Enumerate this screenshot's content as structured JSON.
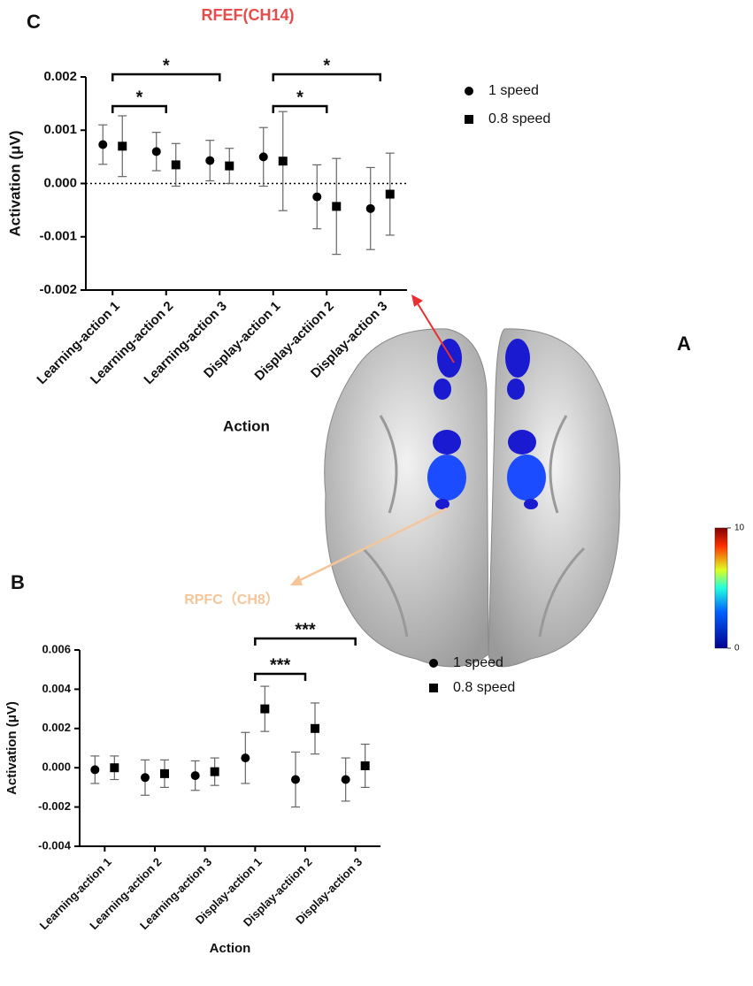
{
  "figure": {
    "panel_a": "A",
    "panel_b": "B",
    "panel_c": "C",
    "region_b": "RPFC（CH8）",
    "colorbar": {
      "ticks": [
        0,
        10
      ]
    }
  },
  "chart_data": [
    {
      "type": "errorbar",
      "title": "RFEF(CH14)",
      "x_label": "Action",
      "y_label": "Activation (μV)",
      "categories": [
        "Learning-action 1",
        "Learning-action 2",
        "Learning-action 3",
        "Display-action 1",
        "Display-actiion 2",
        "Display-action 3"
      ],
      "series": [
        {
          "name": "1 speed",
          "marker": "circle",
          "color": "#000000",
          "values": [
            0.00073,
            0.0006,
            0.00043,
            0.0005,
            -0.00025,
            -0.00047
          ],
          "errors": [
            0.00037,
            0.00036,
            0.00038,
            0.00055,
            0.0006,
            0.00077
          ]
        },
        {
          "name": "0.8 speed",
          "marker": "square",
          "color": "#000000",
          "values": [
            0.0007,
            0.00035,
            0.00033,
            0.00042,
            -0.00043,
            -0.0002
          ],
          "errors": [
            0.00057,
            0.0004,
            0.00033,
            0.00093,
            0.0009,
            0.00077
          ]
        }
      ],
      "ylim": [
        -0.002,
        0.002
      ],
      "yticks": [
        -0.002,
        -0.001,
        {
          "value": 0,
          "label": "0.000"
        },
        0.001,
        0.002
      ],
      "zero_line": true,
      "comparisons": [
        {
          "from": "Learning-action 1",
          "to": "Learning-action 3",
          "label": "*"
        },
        {
          "from": "Learning-action 1",
          "to": "Learning-action 2",
          "label": "*"
        },
        {
          "from": "Display-action 1",
          "to": "Display-action 3",
          "label": "*"
        },
        {
          "from": "Display-action 1",
          "to": "Display-actiion 2",
          "label": "*"
        }
      ]
    },
    {
      "type": "errorbar",
      "x_label": "Action",
      "y_label": "Activation (μV)",
      "categories": [
        "Learning-action 1",
        "Learning-action 2",
        "Learning-action 3",
        "Display-action 1",
        "Display-actiion 2",
        "Display-action 3"
      ],
      "series": [
        {
          "name": "1 speed",
          "marker": "circle",
          "color": "#000000",
          "values": [
            -0.0001,
            -0.0005,
            -0.0004,
            0.0005,
            -0.0006,
            -0.0006
          ],
          "errors": [
            0.0007,
            0.0009,
            0.00075,
            0.0013,
            0.0014,
            0.0011
          ]
        },
        {
          "name": "0.8 speed",
          "marker": "square",
          "color": "#000000",
          "values": [
            0,
            -0.0003,
            -0.0002,
            0.003,
            0.002,
            0.0001
          ],
          "errors": [
            0.0006,
            0.0007,
            0.0007,
            0.00115,
            0.0013,
            0.0011
          ]
        }
      ],
      "ylim": [
        -0.004,
        0.006
      ],
      "yticks": [
        -0.004,
        -0.002,
        {
          "value": 0,
          "label": "0.000"
        },
        0.002,
        0.004,
        0.006
      ],
      "zero_line": false,
      "comparisons": [
        {
          "from": "Display-action 1",
          "to": "Display-action 3",
          "label": "***"
        },
        {
          "from": "Display-action 1",
          "to": "Display-actiion 2",
          "label": "***"
        }
      ]
    }
  ]
}
